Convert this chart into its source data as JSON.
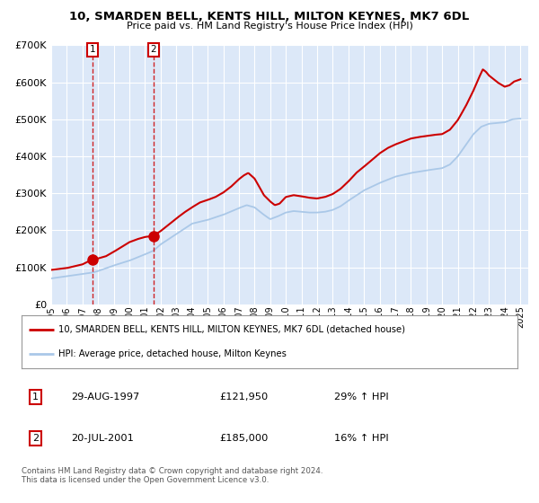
{
  "title": "10, SMARDEN BELL, KENTS HILL, MILTON KEYNES, MK7 6DL",
  "subtitle": "Price paid vs. HM Land Registry's House Price Index (HPI)",
  "ylim": [
    0,
    700000
  ],
  "xlim_start": 1995.0,
  "xlim_end": 2025.5,
  "yticks": [
    0,
    100000,
    200000,
    300000,
    400000,
    500000,
    600000,
    700000
  ],
  "ytick_labels": [
    "£0",
    "£100K",
    "£200K",
    "£300K",
    "£400K",
    "£500K",
    "£600K",
    "£700K"
  ],
  "plot_bg_color": "#dce8f8",
  "grid_color": "#ffffff",
  "red_color": "#cc0000",
  "blue_color": "#aac8e8",
  "transaction1": {
    "date": "29-AUG-1997",
    "price": 121950,
    "label": "1",
    "year": 1997.66,
    "hpi_pct": "29% ↑ HPI"
  },
  "transaction2": {
    "date": "20-JUL-2001",
    "price": 185000,
    "label": "2",
    "year": 2001.54,
    "hpi_pct": "16% ↑ HPI"
  },
  "legend_line1": "10, SMARDEN BELL, KENTS HILL, MILTON KEYNES, MK7 6DL (detached house)",
  "legend_line2": "HPI: Average price, detached house, Milton Keynes",
  "footer": "Contains HM Land Registry data © Crown copyright and database right 2024.\nThis data is licensed under the Open Government Licence v3.0.",
  "xticks": [
    1995,
    1996,
    1997,
    1998,
    1999,
    2000,
    2001,
    2002,
    2003,
    2004,
    2005,
    2006,
    2007,
    2008,
    2009,
    2010,
    2011,
    2012,
    2013,
    2014,
    2015,
    2016,
    2017,
    2018,
    2019,
    2020,
    2021,
    2022,
    2023,
    2024,
    2025
  ]
}
